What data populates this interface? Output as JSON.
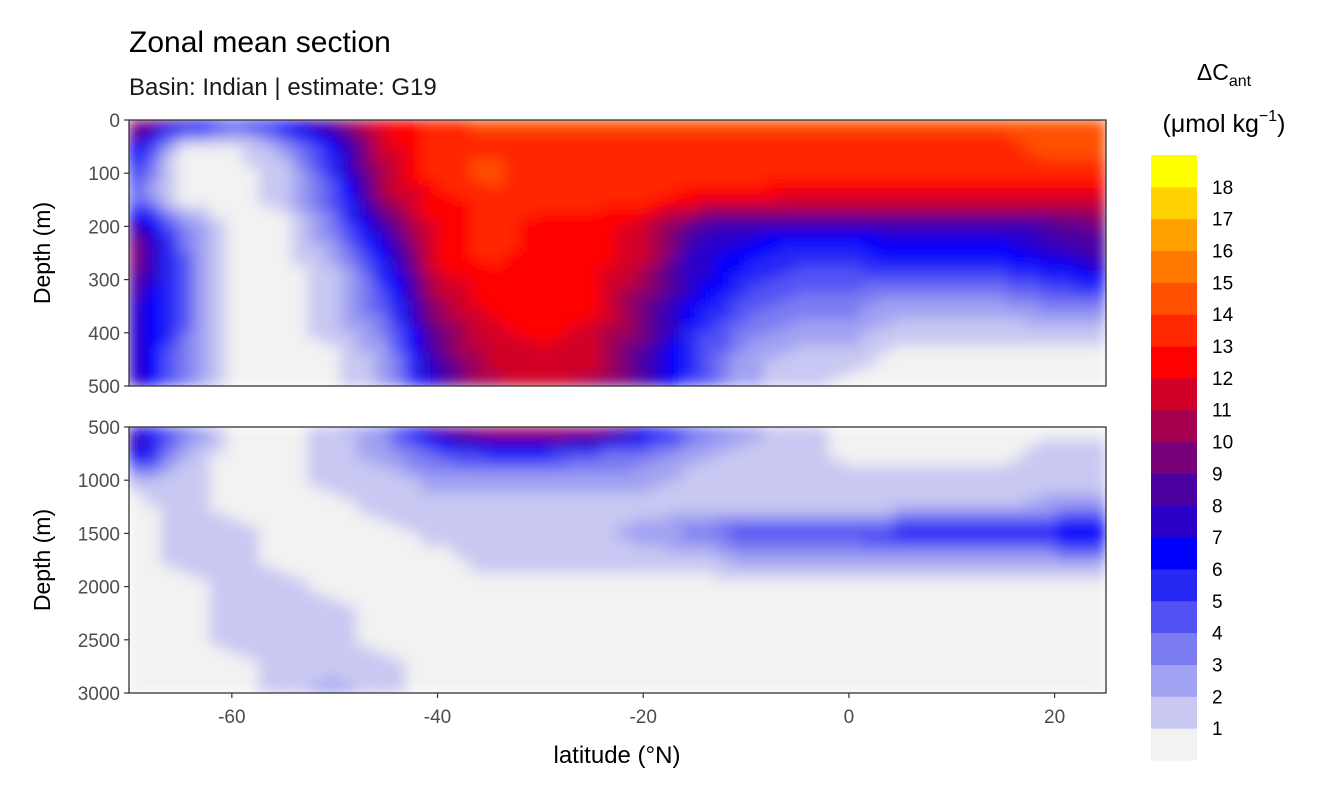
{
  "title": "Zonal mean section",
  "subtitle": "Basin: Indian | estimate: G19",
  "legend": {
    "title_main": "ΔC",
    "title_sub": "ant",
    "unit_pre": "(μmol kg",
    "unit_sup": "−1",
    "unit_post": ")",
    "colors": [
      "#f2f2f2",
      "#c8c8f2",
      "#a2a2f2",
      "#7b7bf2",
      "#5252f5",
      "#2828f5",
      "#0000ff",
      "#2a00c8",
      "#4b00a0",
      "#780078",
      "#a50050",
      "#d20028",
      "#ff0000",
      "#ff2800",
      "#ff5000",
      "#ff7800",
      "#ffa000",
      "#ffd200",
      "#ffff00"
    ],
    "labels": [
      "1",
      "2",
      "3",
      "4",
      "5",
      "6",
      "7",
      "8",
      "9",
      "10",
      "11",
      "12",
      "13",
      "14",
      "15",
      "16",
      "17",
      "18"
    ]
  },
  "chart_data": [
    {
      "type": "heatmap",
      "panel": "upper",
      "xlabel": "",
      "ylabel": "Depth (m)",
      "xlim": [
        -70,
        25
      ],
      "ylim": [
        500,
        0
      ],
      "yticks": [
        "0",
        "100",
        "200",
        "300",
        "400",
        "500"
      ],
      "ytick_values": [
        0,
        100,
        200,
        300,
        400,
        500
      ],
      "x": [
        -70,
        -65,
        -60,
        -55,
        -50,
        -45,
        -40,
        -35,
        -30,
        -25,
        -20,
        -15,
        -10,
        -5,
        0,
        5,
        10,
        15,
        20,
        25
      ],
      "depth": [
        0,
        50,
        100,
        150,
        200,
        250,
        300,
        350,
        400,
        450,
        500
      ],
      "values": [
        [
          11,
          10,
          6,
          7,
          10,
          13,
          14,
          15,
          15,
          15,
          15,
          15,
          15,
          15,
          15,
          15,
          15,
          15,
          15,
          15
        ],
        [
          9,
          1,
          1,
          3,
          7,
          12,
          14,
          14,
          14,
          14,
          14,
          14,
          14,
          14,
          14,
          14,
          14,
          14,
          15,
          15
        ],
        [
          6,
          1,
          1,
          2,
          6,
          12,
          14,
          15,
          14,
          14,
          14,
          14,
          14,
          14,
          14,
          14,
          14,
          14,
          14,
          14
        ],
        [
          5,
          1,
          1,
          2,
          5,
          11,
          13,
          14,
          14,
          14,
          14,
          13,
          13,
          12,
          12,
          12,
          12,
          12,
          12,
          12
        ],
        [
          10,
          4,
          1,
          1,
          4,
          9,
          13,
          14,
          13,
          13,
          12,
          9,
          8,
          8,
          8,
          8,
          8,
          8,
          9,
          10
        ],
        [
          11,
          5,
          1,
          1,
          3,
          7,
          13,
          14,
          13,
          13,
          12,
          8,
          7,
          6,
          6,
          7,
          7,
          7,
          8,
          9
        ],
        [
          10,
          5,
          1,
          1,
          2,
          6,
          12,
          13,
          13,
          13,
          11,
          8,
          6,
          5,
          5,
          5,
          5,
          5,
          6,
          7
        ],
        [
          9,
          5,
          1,
          1,
          2,
          5,
          11,
          13,
          13,
          13,
          10,
          7,
          5,
          4,
          4,
          3,
          3,
          3,
          4,
          4
        ],
        [
          9,
          5,
          1,
          1,
          2,
          4,
          10,
          12,
          13,
          12,
          10,
          6,
          4,
          3,
          3,
          2,
          2,
          2,
          2,
          2
        ],
        [
          9,
          4,
          1,
          1,
          1,
          3,
          9,
          12,
          12,
          12,
          9,
          6,
          3,
          2,
          2,
          1,
          1,
          1,
          1,
          1
        ],
        [
          9,
          4,
          1,
          1,
          1,
          3,
          8,
          11,
          12,
          11,
          9,
          5,
          3,
          2,
          1,
          1,
          1,
          1,
          1,
          1
        ]
      ]
    },
    {
      "type": "heatmap",
      "panel": "lower",
      "xlabel": "latitude (°N)",
      "ylabel": "Depth (m)",
      "xlim": [
        -70,
        25
      ],
      "ylim": [
        3000,
        500
      ],
      "xticks": [
        "-60",
        "-40",
        "-20",
        "0",
        "20"
      ],
      "xtick_values": [
        -60,
        -40,
        -20,
        0,
        20
      ],
      "yticks": [
        "500",
        "1000",
        "1500",
        "2000",
        "2500",
        "3000"
      ],
      "ytick_values": [
        500,
        1000,
        1500,
        2000,
        2500,
        3000
      ],
      "x": [
        -70,
        -65,
        -60,
        -55,
        -50,
        -45,
        -40,
        -35,
        -30,
        -25,
        -20,
        -15,
        -10,
        -5,
        0,
        5,
        10,
        15,
        20,
        25
      ],
      "depth": [
        500,
        750,
        1000,
        1250,
        1500,
        1750,
        2000,
        2250,
        2500,
        2750,
        3000
      ],
      "values": [
        [
          8,
          5,
          1,
          1,
          2,
          4,
          10,
          12,
          12,
          12,
          9,
          5,
          3,
          2,
          1,
          1,
          1,
          1,
          1,
          1
        ],
        [
          9,
          3,
          1,
          1,
          2,
          3,
          5,
          6,
          6,
          5,
          4,
          3,
          2,
          2,
          1,
          1,
          1,
          1,
          2,
          2
        ],
        [
          2,
          2,
          1,
          1,
          2,
          2,
          3,
          3,
          3,
          3,
          3,
          2,
          2,
          2,
          2,
          2,
          2,
          2,
          2,
          2
        ],
        [
          1,
          2,
          1,
          1,
          1,
          2,
          2,
          2,
          2,
          2,
          2,
          2,
          2,
          2,
          2,
          2,
          2,
          2,
          3,
          3
        ],
        [
          1,
          2,
          2,
          1,
          1,
          1,
          2,
          2,
          2,
          2,
          3,
          4,
          5,
          5,
          5,
          6,
          6,
          6,
          7,
          7
        ],
        [
          1,
          2,
          2,
          1,
          1,
          1,
          1,
          2,
          2,
          2,
          2,
          2,
          3,
          3,
          3,
          3,
          3,
          3,
          3,
          3
        ],
        [
          1,
          1,
          2,
          2,
          1,
          1,
          1,
          1,
          1,
          1,
          1,
          1,
          1,
          1,
          1,
          1,
          1,
          1,
          1,
          1
        ],
        [
          1,
          1,
          2,
          2,
          2,
          1,
          1,
          1,
          1,
          1,
          1,
          1,
          1,
          1,
          1,
          1,
          1,
          1,
          1,
          1
        ],
        [
          1,
          1,
          2,
          2,
          2,
          1,
          1,
          1,
          1,
          1,
          1,
          1,
          1,
          1,
          1,
          1,
          1,
          1,
          1,
          1
        ],
        [
          1,
          1,
          1,
          2,
          2,
          2,
          1,
          1,
          1,
          1,
          1,
          1,
          1,
          1,
          1,
          1,
          1,
          1,
          1,
          1
        ],
        [
          1,
          1,
          1,
          2,
          3,
          2,
          1,
          1,
          1,
          1,
          1,
          1,
          1,
          1,
          1,
          1,
          1,
          1,
          1,
          1
        ]
      ]
    }
  ]
}
